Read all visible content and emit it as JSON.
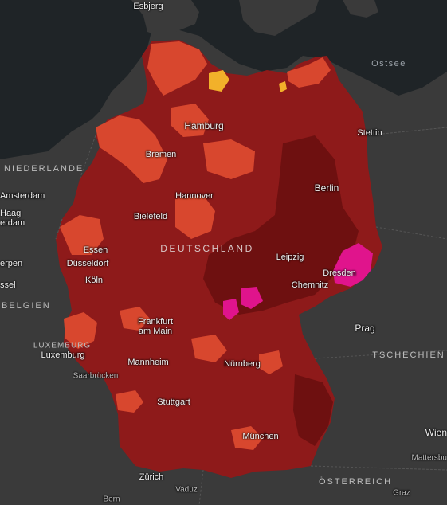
{
  "colors": {
    "water": "#1f2427",
    "land": "#3a3a3a",
    "germany_base": "#8e1a1a",
    "deep_red": "#6e1010",
    "orange_red": "#d8472e",
    "yellow": "#f2b12a",
    "magenta": "#e0148c"
  },
  "labels": {
    "esbjerg": "Esbjerg",
    "ostsee": "Ostsee",
    "hamburg": "Hamburg",
    "stettin": "Stettin",
    "bremen": "Bremen",
    "niederlande": "NIEDERLANDE",
    "amsterdam": "Amsterdam",
    "haag": "Haag",
    "rdam": "erdam",
    "berlin": "Berlin",
    "hannover": "Hannover",
    "bielefeld": "Bielefeld",
    "essen": "Essen",
    "deutschland": "DEUTSCHLAND",
    "duesseldorf": "Düsseldorf",
    "leipzig": "Leipzig",
    "koeln": "Köln",
    "dresden": "Dresden",
    "chemnitz": "Chemnitz",
    "rpen": "erpen",
    "ssel": "ssel",
    "belgien": "BELGIEN",
    "frankfurt": "Frankfurt\nam Main",
    "prag": "Prag",
    "luxemburg_country": "LUXEMBURG",
    "luxemburg_city": "Luxemburg",
    "tschechien": "TSCHECHIEN",
    "mannheim": "Mannheim",
    "saarbruecken": "Saarbrücken",
    "nuernberg": "Nürnberg",
    "stuttgart": "Stuttgart",
    "wien": "Wien",
    "muenchen": "München",
    "mattersb": "Mattersbu",
    "oesterreich": "ÖSTERREICH",
    "zuerich": "Zürich",
    "vaduz": "Vaduz",
    "graz": "Graz",
    "bern": "Bern"
  }
}
